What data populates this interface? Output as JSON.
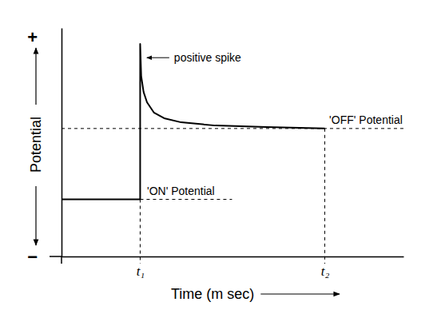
{
  "chart_data": {
    "type": "line",
    "x_label": "Time (m sec)",
    "y_label": "Potential",
    "x": [
      0,
      23,
      23,
      23.3,
      24,
      25,
      27,
      30,
      35,
      45,
      60,
      77
    ],
    "values": [
      25,
      25,
      93,
      79,
      72,
      67.5,
      63,
      60.5,
      58.7,
      57.3,
      56.6,
      56
    ],
    "color": "#000000",
    "xlim": [
      0,
      100
    ],
    "ylim": [
      0,
      100
    ],
    "xticks": [
      {
        "value": 23,
        "label": "t₁"
      },
      {
        "value": 77,
        "label": "t₂"
      }
    ],
    "yticks": [
      {
        "value": 0,
        "label": "−"
      },
      {
        "value": 96,
        "label": "+"
      }
    ],
    "grid": false,
    "annotations": [
      {
        "text": "positive spike",
        "x": 24.5,
        "y": 87
      },
      {
        "text": "'ON' Potential",
        "x": 25,
        "y": 25
      },
      {
        "text": "'OFF' Potential",
        "x": 78.3,
        "y": 56
      }
    ]
  }
}
